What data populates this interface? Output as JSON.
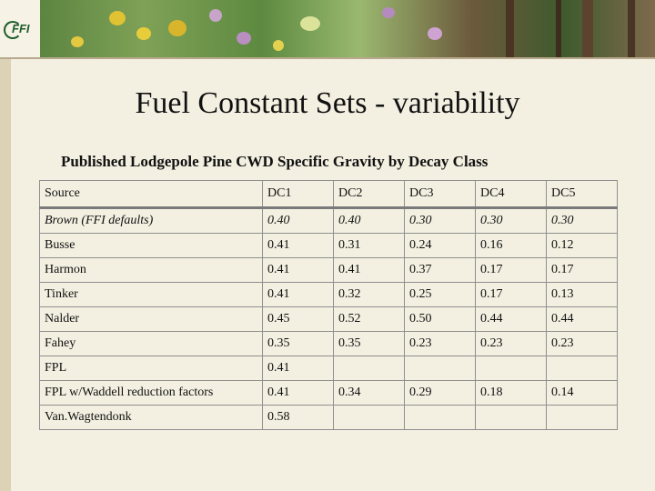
{
  "logo": {
    "text": "FFI"
  },
  "title": "Fuel Constant Sets - variability",
  "subtitle": "Published Lodgepole Pine CWD Specific Gravity by Decay Class",
  "table": {
    "headers": [
      "Source",
      "DC1",
      "DC2",
      "DC3",
      "DC4",
      "DC5"
    ],
    "rows": [
      [
        "Brown (FFI defaults)",
        "0.40",
        "0.40",
        "0.30",
        "0.30",
        "0.30"
      ],
      [
        "Busse",
        "0.41",
        "0.31",
        "0.24",
        "0.16",
        "0.12"
      ],
      [
        "Harmon",
        "0.41",
        "0.41",
        "0.37",
        "0.17",
        "0.17"
      ],
      [
        "Tinker",
        "0.41",
        "0.32",
        "0.25",
        "0.17",
        "0.13"
      ],
      [
        "Nalder",
        "0.45",
        "0.52",
        "0.50",
        "0.44",
        "0.44"
      ],
      [
        "Fahey",
        "0.35",
        "0.35",
        "0.23",
        "0.23",
        "0.23"
      ],
      [
        "FPL",
        "0.41",
        "",
        "",
        "",
        ""
      ],
      [
        "FPL w/Waddell reduction factors",
        "0.41",
        "0.34",
        "0.29",
        "0.18",
        "0.14"
      ],
      [
        "Van.Wagtendonk",
        "0.58",
        "",
        "",
        "",
        ""
      ]
    ]
  }
}
